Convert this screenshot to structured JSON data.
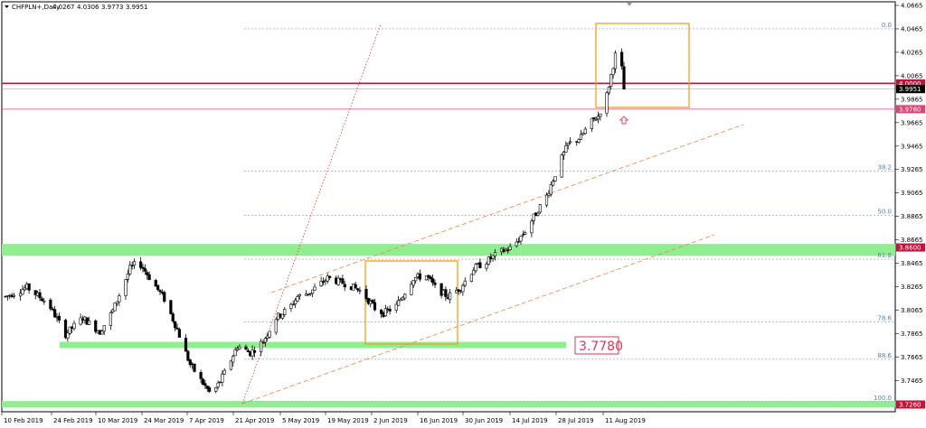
{
  "header": {
    "symbol": "CHFPLN+,Daily",
    "open": "4.0267",
    "high": "4.0306",
    "low": "3.9773",
    "close": "3.9951"
  },
  "chart_data": {
    "type": "candlestick",
    "ylim": [
      3.726,
      4.0665
    ],
    "y_ticks": [
      "4.0665",
      "4.0465",
      "4.0265",
      "4.0065",
      "3.9865",
      "3.9665",
      "3.9465",
      "3.9265",
      "3.9065",
      "3.8865",
      "3.8665",
      "3.8465",
      "3.8265",
      "3.8065",
      "3.7865",
      "3.7665",
      "3.7465"
    ],
    "x_ticks": [
      "10 Feb 2019",
      "24 Feb 2019",
      "10 Mar 2019",
      "24 Mar 2019",
      "7 Apr 2019",
      "21 Apr 2019",
      "5 May 2019",
      "19 May 2019",
      "2 Jun 2019",
      "16 Jun 2019",
      "30 Jun 2019",
      "14 Jul 2019",
      "28 Jul 2019",
      "11 Aug 2019"
    ],
    "price_labels": [
      {
        "text": "4.0000",
        "value": 4.0,
        "color": "#c0143c"
      },
      {
        "text": "3.9951",
        "value": 3.9951,
        "color": "#000000"
      },
      {
        "text": "3.9780",
        "value": 3.978,
        "color": "#e0427a"
      },
      {
        "text": "3.8600",
        "value": 3.86,
        "color": "#c0143c"
      },
      {
        "text": "3.7260",
        "value": 3.726,
        "color": "#c0143c"
      }
    ],
    "fib_levels": [
      {
        "label": "0.0",
        "value": 4.0465
      },
      {
        "label": "38.2",
        "value": 3.925
      },
      {
        "label": "50.0",
        "value": 3.8875
      },
      {
        "label": "61.8",
        "value": 3.85
      },
      {
        "label": "78.6",
        "value": 3.7965
      },
      {
        "label": "88.6",
        "value": 3.7647
      },
      {
        "label": "100.0",
        "value": 3.7285
      }
    ],
    "support_zones": [
      {
        "from": 3.853,
        "to": 3.863
      },
      {
        "from": 3.777,
        "to": 3.7795
      },
      {
        "from": 3.7245,
        "to": 3.729
      }
    ],
    "callout": "3.7780",
    "candles": []
  },
  "colors": {
    "bull": "#ffffff",
    "bear": "#000000",
    "zone": "#90ee90",
    "box": "#f0a020",
    "trend": "#f08040",
    "resistance": "#c0143c"
  }
}
